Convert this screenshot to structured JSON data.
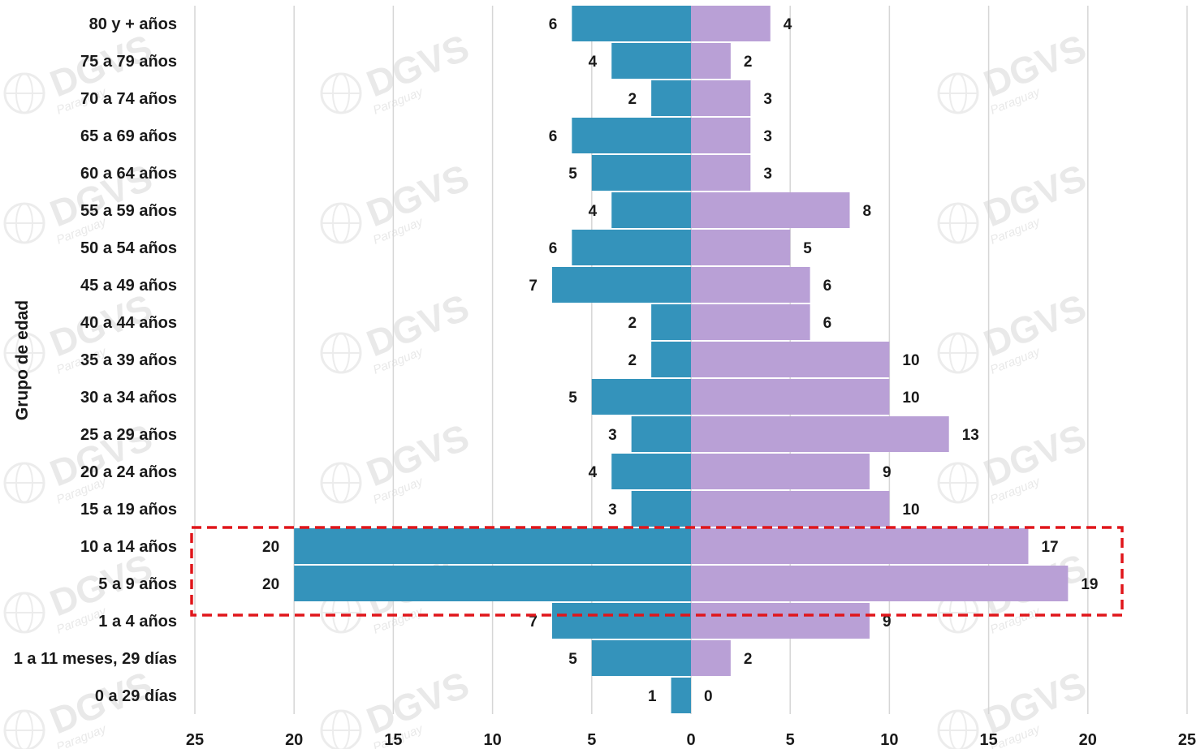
{
  "chart_data": {
    "type": "bar",
    "orientation": "horizontal",
    "layout": "population-pyramid",
    "ylabel": "Grupo de edad",
    "categories": [
      "80 y + años",
      "75 a 79 años",
      "70 a 74 años",
      "65 a 69 años",
      "60 a 64 años",
      "55 a 59 años",
      "50 a 54 años",
      "45 a 49 años",
      "40 a 44 años",
      "35 a 39 años",
      "30 a 34 años",
      "25 a 29 años",
      "20 a 24 años",
      "15 a 19 años",
      "10 a 14 años",
      "5 a 9  años",
      "1 a 4 años",
      "1 a 11 meses, 29 días",
      "0 a 29 días"
    ],
    "series": [
      {
        "side": "left",
        "color": "#3493bb",
        "values": [
          6,
          4,
          2,
          6,
          5,
          4,
          6,
          7,
          2,
          2,
          5,
          3,
          4,
          3,
          20,
          20,
          7,
          5,
          1
        ]
      },
      {
        "side": "right",
        "color": "#b9a0d6",
        "values": [
          4,
          2,
          3,
          3,
          3,
          8,
          5,
          6,
          6,
          10,
          10,
          13,
          9,
          10,
          17,
          19,
          9,
          2,
          0
        ]
      }
    ],
    "xlim": [
      -25,
      25
    ],
    "xticks": [
      -25,
      -20,
      -15,
      -10,
      -5,
      0,
      5,
      10,
      15,
      20,
      25
    ],
    "xtick_labels": [
      "25",
      "20",
      "15",
      "10",
      "5",
      "0",
      "5",
      "10",
      "15",
      "20",
      "25"
    ],
    "grid": true,
    "highlight": {
      "categories": [
        "10 a 14 años",
        "5 a 9  años"
      ],
      "style": "dashed",
      "color": "#e0161b"
    },
    "legend": "none"
  },
  "watermark": {
    "text": "DGVS",
    "subtext": "Paraguay"
  }
}
